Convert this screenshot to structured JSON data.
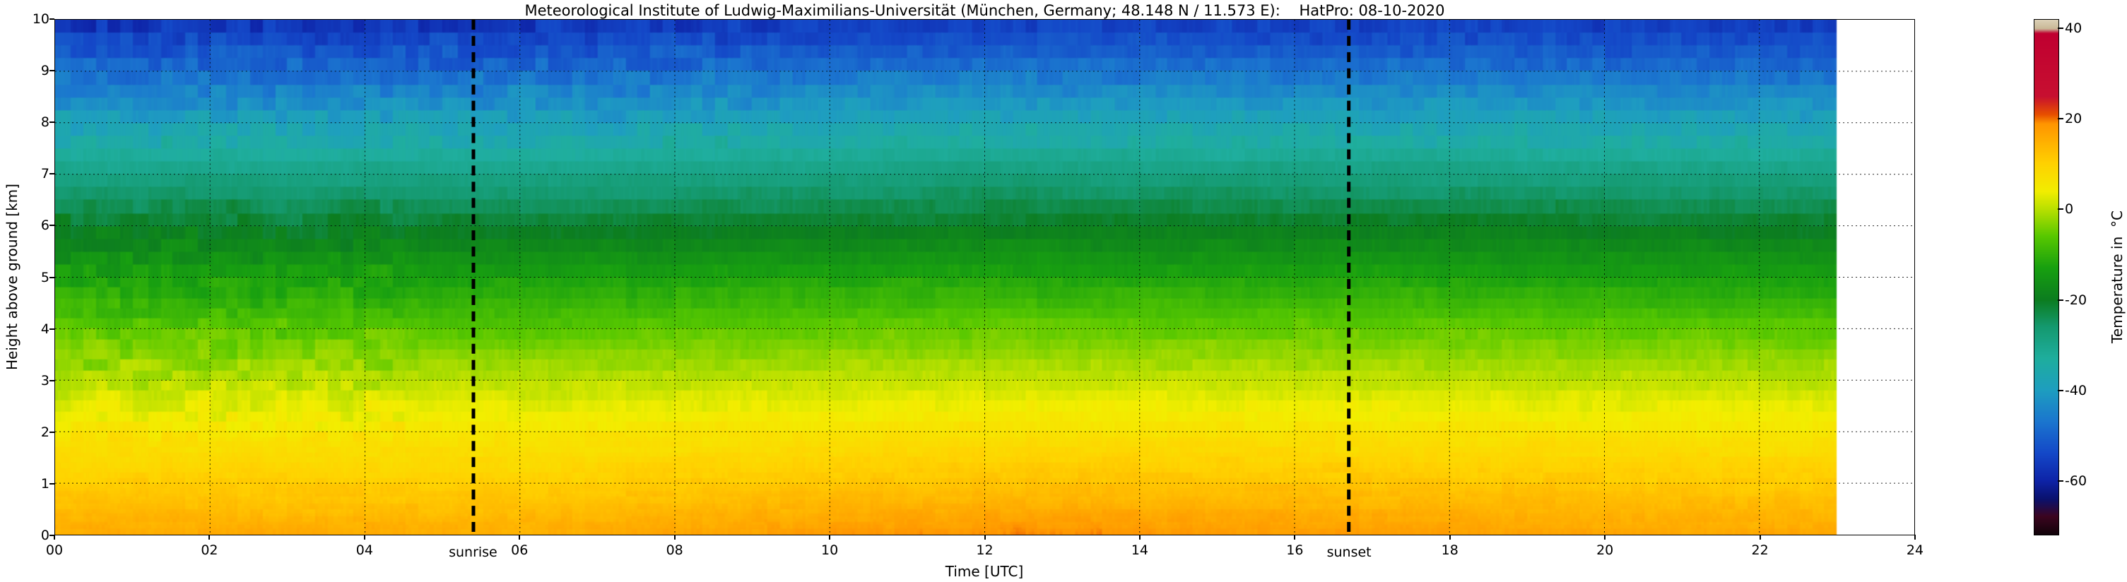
{
  "title": "Meteorological Institute of Ludwig-Maximilians-Universität (München, Germany; 48.148 N / 11.573 E):    HatPro: 08-10-2020",
  "chart_data": {
    "type": "heatmap",
    "xlabel": "Time [UTC]",
    "ylabel": "Height above ground [km]",
    "colorbar_label": "Temperature in  °C",
    "x_range": [
      0,
      24
    ],
    "data_x_range": [
      0,
      23
    ],
    "y_range": [
      0,
      10
    ],
    "grid": true,
    "x_tick_hours": [
      0,
      2,
      4,
      6,
      8,
      10,
      12,
      14,
      16,
      18,
      20,
      22,
      24
    ],
    "x_ticks": [
      "00",
      "02",
      "04",
      "06",
      "08",
      "10",
      "12",
      "14",
      "16",
      "18",
      "20",
      "22",
      "24"
    ],
    "y_tick_values": [
      0,
      1,
      2,
      3,
      4,
      5,
      6,
      7,
      8,
      9,
      10
    ],
    "y_ticks": [
      "0",
      "1",
      "2",
      "3",
      "4",
      "5",
      "6",
      "7",
      "8",
      "9",
      "10"
    ],
    "colorbar_tick_values": [
      40,
      20,
      0,
      -20,
      -40,
      -60
    ],
    "colorbar_ticks": [
      "40",
      "20",
      "0",
      "-20",
      "-40",
      "-60"
    ],
    "colorbar_range": [
      -72,
      42
    ],
    "heights_km": [
      0,
      1,
      2,
      3,
      4,
      5,
      6,
      7,
      8,
      9,
      10
    ],
    "profiles": {
      "hours": [
        0,
        6,
        12,
        18,
        23
      ],
      "temps": [
        [
          16.0,
          11.0,
          6.0,
          0.0,
          -6.0,
          -13.0,
          -20.5,
          -29.0,
          -38.0,
          -48.0,
          -58.0
        ],
        [
          15.5,
          10.5,
          6.0,
          0.0,
          -6.5,
          -13.0,
          -21.0,
          -29.5,
          -38.5,
          -48.5,
          -58.0
        ],
        [
          19.0,
          12.5,
          7.0,
          1.0,
          -5.0,
          -12.0,
          -20.0,
          -28.0,
          -37.0,
          -47.0,
          -56.0
        ],
        [
          17.5,
          12.0,
          6.5,
          0.5,
          -5.5,
          -12.5,
          -20.0,
          -28.5,
          -37.5,
          -47.5,
          -56.5
        ],
        [
          16.0,
          11.0,
          6.0,
          0.0,
          -6.0,
          -13.0,
          -20.5,
          -29.0,
          -38.0,
          -48.0,
          -57.0
        ]
      ]
    },
    "colormap": [
      {
        "t": -72,
        "c": "#12030a"
      },
      {
        "t": -68,
        "c": "#3c0520"
      },
      {
        "t": -64,
        "c": "#0a1270"
      },
      {
        "t": -60,
        "c": "#0e24a8"
      },
      {
        "t": -54,
        "c": "#1448c8"
      },
      {
        "t": -47,
        "c": "#1b76cf"
      },
      {
        "t": -40,
        "c": "#1e9ec0"
      },
      {
        "t": -33,
        "c": "#1fae9e"
      },
      {
        "t": -26,
        "c": "#159a70"
      },
      {
        "t": -20,
        "c": "#0c7d20"
      },
      {
        "t": -13,
        "c": "#18a010"
      },
      {
        "t": -6,
        "c": "#58c800"
      },
      {
        "t": 0,
        "c": "#b8e000"
      },
      {
        "t": 4,
        "c": "#f2ee00"
      },
      {
        "t": 10,
        "c": "#ffd300"
      },
      {
        "t": 19,
        "c": "#ff9500"
      },
      {
        "t": 21,
        "c": "#e85000"
      },
      {
        "t": 25,
        "c": "#c81030"
      },
      {
        "t": 39,
        "c": "#c00030"
      },
      {
        "t": 40,
        "c": "#c9b897"
      },
      {
        "t": 42,
        "c": "#ddd2b8"
      }
    ],
    "annotations": [
      {
        "label": "sunrise",
        "hour": 5.4
      },
      {
        "label": "sunset",
        "hour": 16.7
      }
    ]
  }
}
